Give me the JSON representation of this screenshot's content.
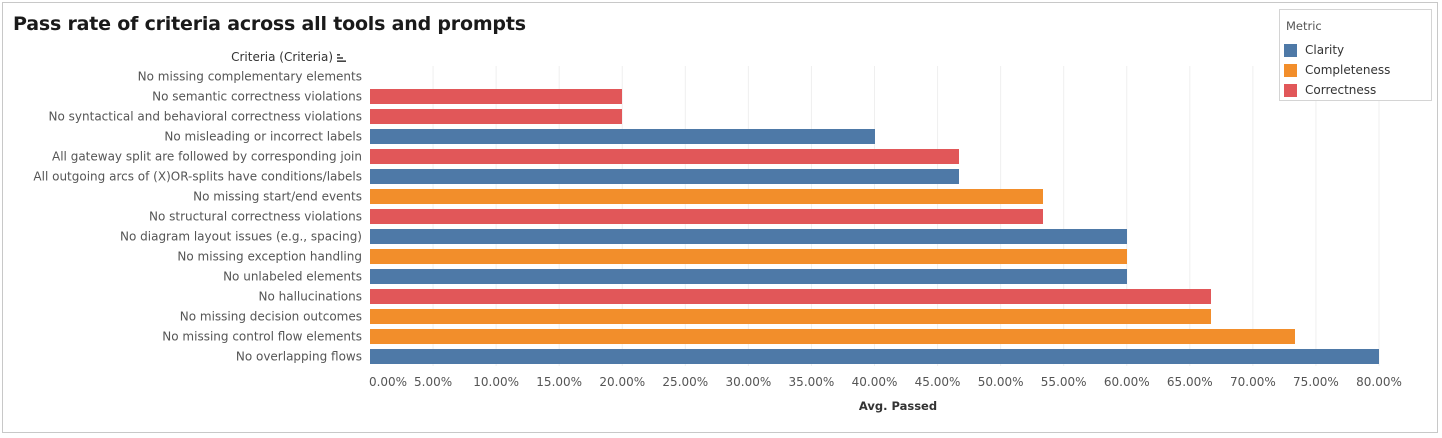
{
  "title": "Pass rate of criteria across all tools and prompts",
  "legend": {
    "title": "Metric",
    "items": [
      {
        "label": "Clarity",
        "color": "#4e79a7"
      },
      {
        "label": "Completeness",
        "color": "#f28e2b"
      },
      {
        "label": "Correctness",
        "color": "#e15759"
      }
    ]
  },
  "chart_data": {
    "type": "bar",
    "orientation": "horizontal",
    "row_header": "Criteria (Criteria)",
    "xlabel": "Avg. Passed",
    "xlim": [
      0,
      0.8
    ],
    "xticks": [
      0,
      0.05,
      0.1,
      0.15,
      0.2,
      0.25,
      0.3,
      0.35,
      0.4,
      0.45,
      0.5,
      0.55,
      0.6,
      0.65,
      0.7,
      0.75,
      0.8
    ],
    "xtick_labels": [
      "0.00%",
      "5.00%",
      "10.00%",
      "15.00%",
      "20.00%",
      "25.00%",
      "30.00%",
      "35.00%",
      "40.00%",
      "45.00%",
      "50.00%",
      "55.00%",
      "60.00%",
      "65.00%",
      "70.00%",
      "75.00%",
      "80.00%"
    ],
    "grid": "vertical",
    "legend_position": "top-right",
    "categories": [
      "No missing complementary elements",
      "No semantic correctness violations",
      "No syntactical and behavioral correctness violations",
      "No misleading or incorrect labels",
      "All gateway split are followed by corresponding join",
      "All outgoing arcs of (X)OR-splits have conditions/labels",
      "No missing start/end events",
      "No structural correctness violations",
      "No diagram layout issues (e.g., spacing)",
      "No missing exception handling",
      "No unlabeled elements",
      "No hallucinations",
      "No missing decision outcomes",
      "No missing control flow elements",
      "No overlapping flows"
    ],
    "values": [
      0,
      0.2,
      0.2,
      0.4,
      0.4667,
      0.4667,
      0.5333,
      0.5333,
      0.6,
      0.6,
      0.6,
      0.6667,
      0.6667,
      0.7333,
      0.8
    ],
    "metrics": [
      "Completeness",
      "Correctness",
      "Correctness",
      "Clarity",
      "Correctness",
      "Clarity",
      "Completeness",
      "Correctness",
      "Clarity",
      "Completeness",
      "Clarity",
      "Correctness",
      "Completeness",
      "Completeness",
      "Clarity"
    ]
  }
}
